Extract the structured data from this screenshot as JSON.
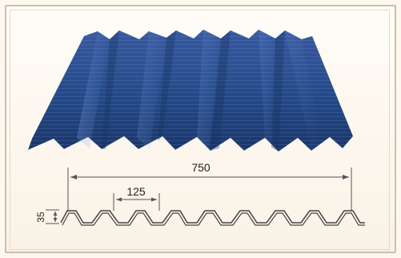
{
  "diagram": {
    "dimensions": {
      "overall_width": "750",
      "rib_pitch": "125",
      "rib_height": "35"
    },
    "colors": {
      "sheet_blue_dark": "#17366e",
      "sheet_blue_mid": "#2c4f97",
      "sheet_blue_light": "#6f8fd0",
      "line": "#555555"
    }
  }
}
